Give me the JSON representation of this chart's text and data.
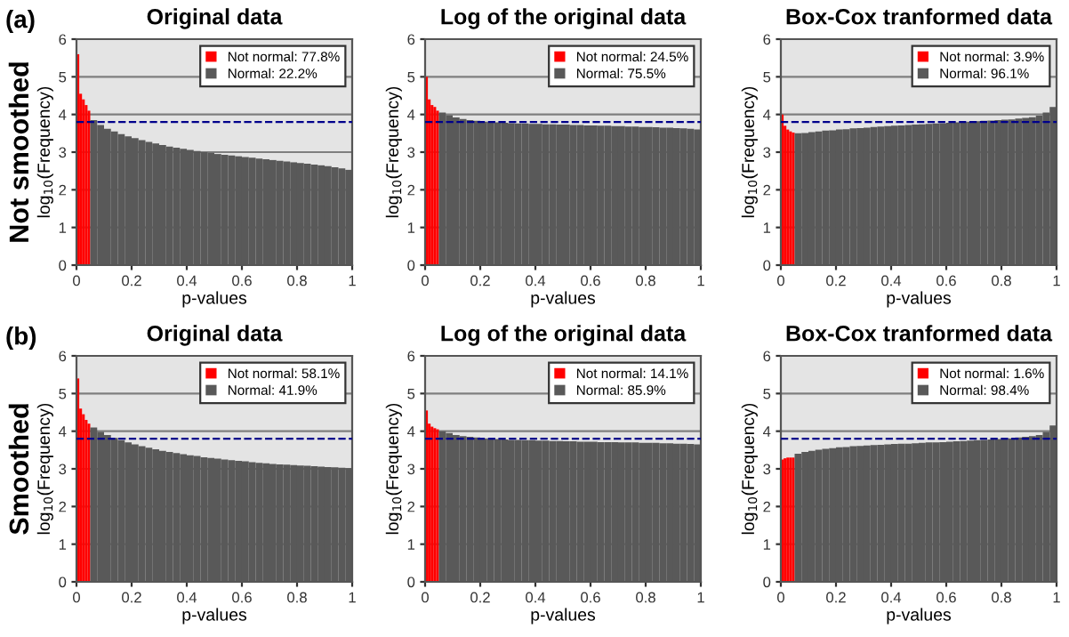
{
  "chart_data": [
    {
      "type": "histogram",
      "title": "Original data",
      "xlabel": "p-values",
      "ylabel": "log$_{10}$(Frequency)",
      "annotations": [
        "(a)",
        "Not smoothed"
      ],
      "bins": [
        0,
        0.01,
        0.02,
        0.03,
        0.04,
        0.05,
        0.075,
        0.1,
        0.125,
        0.15,
        0.175,
        0.2,
        0.225,
        0.25,
        0.275,
        0.3,
        0.325,
        0.35,
        0.375,
        0.4,
        0.425,
        0.45,
        0.475,
        0.5,
        0.525,
        0.55,
        0.575,
        0.6,
        0.625,
        0.65,
        0.675,
        0.7,
        0.725,
        0.75,
        0.775,
        0.8,
        0.825,
        0.85,
        0.875,
        0.9,
        0.925,
        0.95,
        0.975,
        1
      ],
      "series": [
        {
          "name": "Not normal: 77.8%",
          "color": "#ff0000",
          "values": [
            5.6,
            4.55,
            4.4,
            4.25,
            4.1,
            null,
            null,
            null,
            null,
            null,
            null,
            null,
            null,
            null,
            null,
            null,
            null,
            null,
            null,
            null,
            null,
            null,
            null,
            null,
            null,
            null,
            null,
            null,
            null,
            null,
            null,
            null,
            null,
            null,
            null,
            null,
            null,
            null,
            null,
            null,
            null,
            null,
            null
          ]
        },
        {
          "name": "Normal: 22.2%",
          "color": "#595959",
          "values": [
            null,
            null,
            null,
            null,
            null,
            3.85,
            3.72,
            3.62,
            3.55,
            3.48,
            3.42,
            3.37,
            3.32,
            3.27,
            3.23,
            3.19,
            3.15,
            3.12,
            3.09,
            3.06,
            3.03,
            3.0,
            2.98,
            2.95,
            2.93,
            2.91,
            2.89,
            2.87,
            2.85,
            2.83,
            2.81,
            2.79,
            2.77,
            2.75,
            2.73,
            2.71,
            2.69,
            2.67,
            2.65,
            2.63,
            2.6,
            2.57,
            2.53
          ]
        }
      ],
      "xlim": [
        0,
        1
      ],
      "xticks": [
        0,
        0.2,
        0.4,
        0.6,
        0.8,
        1
      ],
      "ylim": [
        0,
        6
      ],
      "yticks": [
        0,
        1,
        2,
        3,
        4,
        5,
        6
      ],
      "grid": "y",
      "legend": "top right",
      "ref_lines": [
        {
          "axis": "y",
          "value": 3.8,
          "color": "#00008b",
          "line_style": "dashed"
        }
      ]
    },
    {
      "type": "histogram",
      "title": "Log of the original data",
      "xlabel": "p-values",
      "ylabel": "log$_{10}$(Frequency)",
      "bins": [
        0,
        0.01,
        0.02,
        0.03,
        0.04,
        0.05,
        0.075,
        0.1,
        0.125,
        0.15,
        0.175,
        0.2,
        0.225,
        0.25,
        0.275,
        0.3,
        0.325,
        0.35,
        0.375,
        0.4,
        0.425,
        0.45,
        0.475,
        0.5,
        0.525,
        0.55,
        0.575,
        0.6,
        0.625,
        0.65,
        0.675,
        0.7,
        0.725,
        0.75,
        0.775,
        0.8,
        0.825,
        0.85,
        0.875,
        0.9,
        0.925,
        0.95,
        0.975,
        1
      ],
      "series": [
        {
          "name": "Not normal: 24.5%",
          "color": "#ff0000",
          "values": [
            5.0,
            4.4,
            4.25,
            4.2,
            4.1,
            null,
            null,
            null,
            null,
            null,
            null,
            null,
            null,
            null,
            null,
            null,
            null,
            null,
            null,
            null,
            null,
            null,
            null,
            null,
            null,
            null,
            null,
            null,
            null,
            null,
            null,
            null,
            null,
            null,
            null,
            null,
            null,
            null,
            null,
            null,
            null,
            null,
            null
          ]
        },
        {
          "name": "Normal: 75.5%",
          "color": "#595959",
          "values": [
            null,
            null,
            null,
            null,
            null,
            4.05,
            3.98,
            3.92,
            3.88,
            3.85,
            3.83,
            3.81,
            3.8,
            3.79,
            3.78,
            3.77,
            3.76,
            3.76,
            3.75,
            3.75,
            3.74,
            3.74,
            3.73,
            3.73,
            3.72,
            3.72,
            3.71,
            3.71,
            3.7,
            3.7,
            3.69,
            3.69,
            3.68,
            3.68,
            3.67,
            3.67,
            3.66,
            3.65,
            3.65,
            3.64,
            3.63,
            3.62,
            3.6
          ]
        }
      ],
      "xlim": [
        0,
        1
      ],
      "xticks": [
        0,
        0.2,
        0.4,
        0.6,
        0.8,
        1
      ],
      "ylim": [
        0,
        6
      ],
      "yticks": [
        0,
        1,
        2,
        3,
        4,
        5,
        6
      ],
      "grid": "y",
      "legend": "top right",
      "ref_lines": [
        {
          "axis": "y",
          "value": 3.8,
          "color": "#00008b",
          "line_style": "dashed"
        }
      ]
    },
    {
      "type": "histogram",
      "title": "Box-Cox tranformed data",
      "xlabel": "p-values",
      "ylabel": "log$_{10}$(Frequency)",
      "bins": [
        0,
        0.01,
        0.02,
        0.03,
        0.04,
        0.05,
        0.075,
        0.1,
        0.125,
        0.15,
        0.175,
        0.2,
        0.225,
        0.25,
        0.275,
        0.3,
        0.325,
        0.35,
        0.375,
        0.4,
        0.425,
        0.45,
        0.475,
        0.5,
        0.525,
        0.55,
        0.575,
        0.6,
        0.625,
        0.65,
        0.675,
        0.7,
        0.725,
        0.75,
        0.775,
        0.8,
        0.825,
        0.85,
        0.875,
        0.9,
        0.925,
        0.95,
        0.975,
        1
      ],
      "series": [
        {
          "name": "Not normal: 3.9%",
          "color": "#ff0000",
          "values": [
            4.0,
            3.7,
            3.6,
            3.55,
            3.52,
            null,
            null,
            null,
            null,
            null,
            null,
            null,
            null,
            null,
            null,
            null,
            null,
            null,
            null,
            null,
            null,
            null,
            null,
            null,
            null,
            null,
            null,
            null,
            null,
            null,
            null,
            null,
            null,
            null,
            null,
            null,
            null,
            null,
            null,
            null,
            null,
            null,
            null
          ]
        },
        {
          "name": "Normal: 96.1%",
          "color": "#595959",
          "values": [
            null,
            null,
            null,
            null,
            null,
            3.5,
            3.51,
            3.53,
            3.55,
            3.57,
            3.58,
            3.6,
            3.61,
            3.63,
            3.64,
            3.65,
            3.67,
            3.68,
            3.69,
            3.7,
            3.71,
            3.72,
            3.73,
            3.74,
            3.75,
            3.76,
            3.77,
            3.78,
            3.79,
            3.8,
            3.81,
            3.82,
            3.83,
            3.84,
            3.85,
            3.86,
            3.87,
            3.89,
            3.91,
            3.93,
            3.97,
            4.05,
            4.2
          ]
        }
      ],
      "xlim": [
        0,
        1
      ],
      "xticks": [
        0,
        0.2,
        0.4,
        0.6,
        0.8,
        1
      ],
      "ylim": [
        0,
        6
      ],
      "yticks": [
        0,
        1,
        2,
        3,
        4,
        5,
        6
      ],
      "grid": "y",
      "legend": "top right",
      "ref_lines": [
        {
          "axis": "y",
          "value": 3.8,
          "color": "#00008b",
          "line_style": "dashed"
        }
      ]
    },
    {
      "type": "histogram",
      "title": "Original data",
      "xlabel": "p-values",
      "ylabel": "log$_{10}$(Frequency)",
      "annotations": [
        "(b)",
        "Smoothed"
      ],
      "bins": [
        0,
        0.01,
        0.02,
        0.03,
        0.04,
        0.05,
        0.075,
        0.1,
        0.125,
        0.15,
        0.175,
        0.2,
        0.225,
        0.25,
        0.275,
        0.3,
        0.325,
        0.35,
        0.375,
        0.4,
        0.425,
        0.45,
        0.475,
        0.5,
        0.525,
        0.55,
        0.575,
        0.6,
        0.625,
        0.65,
        0.675,
        0.7,
        0.725,
        0.75,
        0.775,
        0.8,
        0.825,
        0.85,
        0.875,
        0.9,
        0.925,
        0.95,
        0.975,
        1
      ],
      "series": [
        {
          "name": "Not normal: 58.1%",
          "color": "#ff0000",
          "values": [
            5.4,
            4.6,
            4.45,
            4.3,
            4.2,
            null,
            null,
            null,
            null,
            null,
            null,
            null,
            null,
            null,
            null,
            null,
            null,
            null,
            null,
            null,
            null,
            null,
            null,
            null,
            null,
            null,
            null,
            null,
            null,
            null,
            null,
            null,
            null,
            null,
            null,
            null,
            null,
            null,
            null,
            null,
            null,
            null,
            null
          ]
        },
        {
          "name": "Normal: 41.9%",
          "color": "#595959",
          "values": [
            null,
            null,
            null,
            null,
            null,
            4.1,
            3.98,
            3.9,
            3.82,
            3.76,
            3.7,
            3.65,
            3.6,
            3.56,
            3.52,
            3.48,
            3.45,
            3.42,
            3.39,
            3.36,
            3.34,
            3.31,
            3.29,
            3.27,
            3.25,
            3.23,
            3.21,
            3.2,
            3.18,
            3.16,
            3.15,
            3.13,
            3.12,
            3.11,
            3.1,
            3.09,
            3.08,
            3.07,
            3.06,
            3.05,
            3.04,
            3.03,
            3.02
          ]
        }
      ],
      "xlim": [
        0,
        1
      ],
      "xticks": [
        0,
        0.2,
        0.4,
        0.6,
        0.8,
        1
      ],
      "ylim": [
        0,
        6
      ],
      "yticks": [
        0,
        1,
        2,
        3,
        4,
        5,
        6
      ],
      "grid": "y",
      "legend": "top right",
      "ref_lines": [
        {
          "axis": "y",
          "value": 3.8,
          "color": "#00008b",
          "line_style": "dashed"
        }
      ]
    },
    {
      "type": "histogram",
      "title": "Log of the original data",
      "xlabel": "p-values",
      "ylabel": "log$_{10}$(Frequency)",
      "bins": [
        0,
        0.01,
        0.02,
        0.03,
        0.04,
        0.05,
        0.075,
        0.1,
        0.125,
        0.15,
        0.175,
        0.2,
        0.225,
        0.25,
        0.275,
        0.3,
        0.325,
        0.35,
        0.375,
        0.4,
        0.425,
        0.45,
        0.475,
        0.5,
        0.525,
        0.55,
        0.575,
        0.6,
        0.625,
        0.65,
        0.675,
        0.7,
        0.725,
        0.75,
        0.775,
        0.8,
        0.825,
        0.85,
        0.875,
        0.9,
        0.925,
        0.95,
        0.975,
        1
      ],
      "series": [
        {
          "name": "Not normal: 14.1%",
          "color": "#ff0000",
          "values": [
            4.55,
            4.2,
            4.12,
            4.08,
            4.05,
            null,
            null,
            null,
            null,
            null,
            null,
            null,
            null,
            null,
            null,
            null,
            null,
            null,
            null,
            null,
            null,
            null,
            null,
            null,
            null,
            null,
            null,
            null,
            null,
            null,
            null,
            null,
            null,
            null,
            null,
            null,
            null,
            null,
            null,
            null,
            null,
            null,
            null
          ]
        },
        {
          "name": "Normal: 85.9%",
          "color": "#595959",
          "values": [
            null,
            null,
            null,
            null,
            null,
            4.0,
            3.95,
            3.9,
            3.87,
            3.85,
            3.83,
            3.81,
            3.8,
            3.79,
            3.78,
            3.77,
            3.77,
            3.76,
            3.76,
            3.75,
            3.75,
            3.74,
            3.74,
            3.73,
            3.73,
            3.72,
            3.72,
            3.72,
            3.71,
            3.71,
            3.71,
            3.7,
            3.7,
            3.7,
            3.69,
            3.69,
            3.69,
            3.68,
            3.68,
            3.67,
            3.67,
            3.66,
            3.65
          ]
        }
      ],
      "xlim": [
        0,
        1
      ],
      "xticks": [
        0,
        0.2,
        0.4,
        0.6,
        0.8,
        1
      ],
      "ylim": [
        0,
        6
      ],
      "yticks": [
        0,
        1,
        2,
        3,
        4,
        5,
        6
      ],
      "grid": "y",
      "legend": "top right",
      "ref_lines": [
        {
          "axis": "y",
          "value": 3.8,
          "color": "#00008b",
          "line_style": "dashed"
        }
      ]
    },
    {
      "type": "histogram",
      "title": "Box-Cox tranformed data",
      "xlabel": "p-values",
      "ylabel": "log$_{10}$(Frequency)",
      "bins": [
        0,
        0.01,
        0.02,
        0.03,
        0.04,
        0.05,
        0.075,
        0.1,
        0.125,
        0.15,
        0.175,
        0.2,
        0.225,
        0.25,
        0.275,
        0.3,
        0.325,
        0.35,
        0.375,
        0.4,
        0.425,
        0.45,
        0.475,
        0.5,
        0.525,
        0.55,
        0.575,
        0.6,
        0.625,
        0.65,
        0.675,
        0.7,
        0.725,
        0.75,
        0.775,
        0.8,
        0.825,
        0.85,
        0.875,
        0.9,
        0.925,
        0.95,
        0.975,
        1
      ],
      "series": [
        {
          "name": "Not normal: 1.6%",
          "color": "#ff0000",
          "values": [
            3.25,
            3.28,
            3.3,
            3.3,
            3.3,
            null,
            null,
            null,
            null,
            null,
            null,
            null,
            null,
            null,
            null,
            null,
            null,
            null,
            null,
            null,
            null,
            null,
            null,
            null,
            null,
            null,
            null,
            null,
            null,
            null,
            null,
            null,
            null,
            null,
            null,
            null,
            null,
            null,
            null,
            null,
            null,
            null,
            null
          ]
        },
        {
          "name": "Normal: 98.4%",
          "color": "#595959",
          "values": [
            null,
            null,
            null,
            null,
            null,
            3.4,
            3.45,
            3.48,
            3.51,
            3.53,
            3.55,
            3.57,
            3.58,
            3.6,
            3.61,
            3.62,
            3.63,
            3.64,
            3.65,
            3.66,
            3.67,
            3.67,
            3.68,
            3.69,
            3.7,
            3.7,
            3.71,
            3.72,
            3.73,
            3.74,
            3.75,
            3.76,
            3.77,
            3.78,
            3.79,
            3.8,
            3.81,
            3.83,
            3.85,
            3.87,
            3.9,
            3.98,
            4.15
          ]
        }
      ],
      "xlim": [
        0,
        1
      ],
      "xticks": [
        0,
        0.2,
        0.4,
        0.6,
        0.8,
        1
      ],
      "ylim": [
        0,
        6
      ],
      "yticks": [
        0,
        1,
        2,
        3,
        4,
        5,
        6
      ],
      "grid": "y",
      "legend": "top right",
      "ref_lines": [
        {
          "axis": "y",
          "value": 3.8,
          "color": "#00008b",
          "line_style": "dashed"
        }
      ]
    }
  ]
}
